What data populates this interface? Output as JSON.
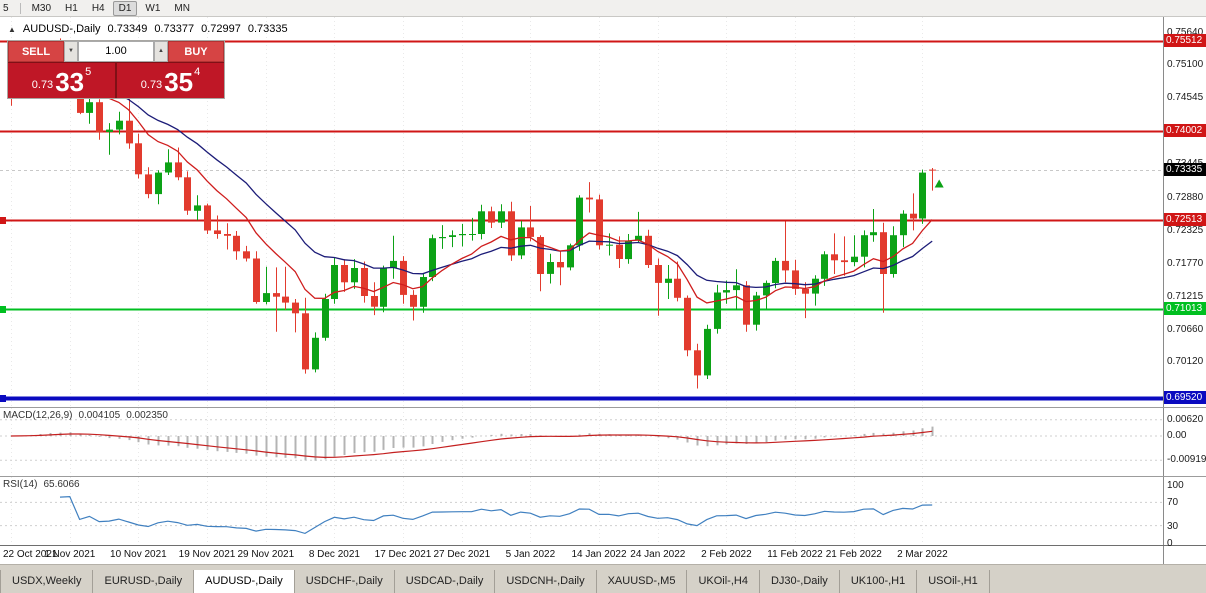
{
  "toolbar": {
    "timeframes": [
      "5",
      "M30",
      "H1",
      "H4",
      "D1",
      "W1",
      "MN"
    ],
    "active": "D1"
  },
  "chart": {
    "collapse_icon": "▲",
    "title": "AUDUSD-,Daily",
    "ohlc": {
      "open": "0.73349",
      "high": "0.73377",
      "low": "0.72997",
      "close": "0.73335"
    },
    "current_price": "0.73335",
    "axis_ticks": [
      "0.75640",
      "0.75100",
      "0.74545",
      "0.73445",
      "0.72880",
      "0.72325",
      "0.71770",
      "0.71215",
      "0.70660",
      "0.70120"
    ],
    "trade_panel": {
      "sell_label": "SELL",
      "buy_label": "BUY",
      "volume": "1.00",
      "spin_down_icon": "▼",
      "spin_up_icon": "▲",
      "sell_price": {
        "prefix": "0.73",
        "big": "33",
        "sup": "5"
      },
      "buy_price": {
        "prefix": "0.73",
        "big": "35",
        "sup": "4"
      }
    }
  },
  "chart_data": {
    "type": "candlestick",
    "title": "AUDUSD-,Daily",
    "symbol": "AUDUSD-",
    "timeframe": "Daily",
    "price_range": {
      "top": 0.75908,
      "bottom": 0.6937
    },
    "candles": [
      [
        0.7468,
        0.7483,
        0.7442,
        0.7465
      ],
      [
        0.7465,
        0.75,
        0.7461,
        0.7488
      ],
      [
        0.7488,
        0.7523,
        0.7481,
        0.75
      ],
      [
        0.75,
        0.7536,
        0.7496,
        0.7518
      ],
      [
        0.7518,
        0.7543,
        0.7499,
        0.7537
      ],
      [
        0.7537,
        0.7555,
        0.7512,
        0.7518
      ],
      [
        0.7518,
        0.7535,
        0.7482,
        0.7522
      ],
      [
        0.7522,
        0.7527,
        0.7428,
        0.743
      ],
      [
        0.743,
        0.7454,
        0.7412,
        0.7448
      ],
      [
        0.7448,
        0.7453,
        0.7385,
        0.7398
      ],
      [
        0.7398,
        0.7413,
        0.736,
        0.7402
      ],
      [
        0.7402,
        0.7432,
        0.7394,
        0.7417
      ],
      [
        0.7417,
        0.7454,
        0.737,
        0.7379
      ],
      [
        0.7379,
        0.7395,
        0.732,
        0.7327
      ],
      [
        0.7327,
        0.7339,
        0.7287,
        0.7294
      ],
      [
        0.7294,
        0.7334,
        0.7277,
        0.733
      ],
      [
        0.733,
        0.7369,
        0.7326,
        0.7347
      ],
      [
        0.7347,
        0.7372,
        0.7317,
        0.7322
      ],
      [
        0.7322,
        0.7332,
        0.7259,
        0.7266
      ],
      [
        0.7266,
        0.7292,
        0.725,
        0.7275
      ],
      [
        0.7275,
        0.7278,
        0.7227,
        0.7233
      ],
      [
        0.7233,
        0.7258,
        0.7219,
        0.7227
      ],
      [
        0.7227,
        0.7245,
        0.7201,
        0.7224
      ],
      [
        0.7224,
        0.7232,
        0.7184,
        0.7198
      ],
      [
        0.7198,
        0.7207,
        0.7181,
        0.7186
      ],
      [
        0.7186,
        0.7198,
        0.711,
        0.7113
      ],
      [
        0.7113,
        0.7172,
        0.7109,
        0.7128
      ],
      [
        0.7128,
        0.7171,
        0.7063,
        0.7122
      ],
      [
        0.7122,
        0.7172,
        0.71,
        0.7112
      ],
      [
        0.7112,
        0.7118,
        0.7062,
        0.7094
      ],
      [
        0.7094,
        0.712,
        0.6993,
        0.7
      ],
      [
        0.7,
        0.7062,
        0.6995,
        0.7053
      ],
      [
        0.7053,
        0.7127,
        0.7048,
        0.7118
      ],
      [
        0.7118,
        0.7187,
        0.711,
        0.7175
      ],
      [
        0.7175,
        0.7185,
        0.713,
        0.7146
      ],
      [
        0.7146,
        0.7185,
        0.7135,
        0.717
      ],
      [
        0.717,
        0.7181,
        0.7112,
        0.7123
      ],
      [
        0.7123,
        0.7146,
        0.7091,
        0.7105
      ],
      [
        0.7105,
        0.7174,
        0.7096,
        0.717
      ],
      [
        0.717,
        0.7224,
        0.7152,
        0.7182
      ],
      [
        0.7182,
        0.719,
        0.711,
        0.7125
      ],
      [
        0.7125,
        0.7133,
        0.7082,
        0.7105
      ],
      [
        0.7105,
        0.716,
        0.7095,
        0.7155
      ],
      [
        0.7155,
        0.7226,
        0.7148,
        0.722
      ],
      [
        0.722,
        0.7242,
        0.7202,
        0.7222
      ],
      [
        0.7222,
        0.7233,
        0.7205,
        0.7225
      ],
      [
        0.7225,
        0.7244,
        0.7206,
        0.7227
      ],
      [
        0.7227,
        0.7254,
        0.7216,
        0.7227
      ],
      [
        0.7227,
        0.7276,
        0.7218,
        0.7265
      ],
      [
        0.7265,
        0.7273,
        0.7237,
        0.7246
      ],
      [
        0.7246,
        0.7277,
        0.7237,
        0.7265
      ],
      [
        0.7265,
        0.7281,
        0.7182,
        0.7191
      ],
      [
        0.7191,
        0.7249,
        0.7185,
        0.7238
      ],
      [
        0.7238,
        0.7274,
        0.7215,
        0.7222
      ],
      [
        0.7222,
        0.7225,
        0.7131,
        0.716
      ],
      [
        0.716,
        0.7194,
        0.7144,
        0.718
      ],
      [
        0.718,
        0.7199,
        0.7141,
        0.7171
      ],
      [
        0.7171,
        0.7211,
        0.7166,
        0.7208
      ],
      [
        0.7208,
        0.7292,
        0.7199,
        0.7288
      ],
      [
        0.7288,
        0.7314,
        0.7263,
        0.7285
      ],
      [
        0.7285,
        0.7293,
        0.7201,
        0.7208
      ],
      [
        0.7208,
        0.7228,
        0.7191,
        0.7209
      ],
      [
        0.7209,
        0.7223,
        0.717,
        0.7185
      ],
      [
        0.7185,
        0.7227,
        0.7177,
        0.7216
      ],
      [
        0.7216,
        0.7264,
        0.7212,
        0.7224
      ],
      [
        0.7224,
        0.7234,
        0.717,
        0.7175
      ],
      [
        0.7175,
        0.7186,
        0.709,
        0.7145
      ],
      [
        0.7145,
        0.7175,
        0.7118,
        0.7152
      ],
      [
        0.7152,
        0.7181,
        0.7114,
        0.712
      ],
      [
        0.712,
        0.7124,
        0.7022,
        0.7032
      ],
      [
        0.7032,
        0.7043,
        0.6968,
        0.699
      ],
      [
        0.699,
        0.7075,
        0.6984,
        0.7068
      ],
      [
        0.7068,
        0.7142,
        0.706,
        0.7129
      ],
      [
        0.7129,
        0.7149,
        0.711,
        0.7133
      ],
      [
        0.7133,
        0.7168,
        0.71,
        0.7141
      ],
      [
        0.7141,
        0.7148,
        0.7063,
        0.7075
      ],
      [
        0.7075,
        0.713,
        0.7065,
        0.7124
      ],
      [
        0.7124,
        0.7149,
        0.7102,
        0.7145
      ],
      [
        0.7145,
        0.7187,
        0.7136,
        0.7182
      ],
      [
        0.7182,
        0.7248,
        0.7146,
        0.7166
      ],
      [
        0.7166,
        0.7184,
        0.7125,
        0.7135
      ],
      [
        0.7135,
        0.7146,
        0.7086,
        0.7127
      ],
      [
        0.7127,
        0.7158,
        0.7107,
        0.7152
      ],
      [
        0.7152,
        0.7198,
        0.714,
        0.7193
      ],
      [
        0.7193,
        0.7228,
        0.716,
        0.7183
      ],
      [
        0.7183,
        0.7223,
        0.7157,
        0.718
      ],
      [
        0.718,
        0.7225,
        0.7173,
        0.7189
      ],
      [
        0.7189,
        0.7233,
        0.7171,
        0.7225
      ],
      [
        0.7225,
        0.7269,
        0.7214,
        0.723
      ],
      [
        0.723,
        0.7246,
        0.7095,
        0.716
      ],
      [
        0.716,
        0.724,
        0.7154,
        0.7225
      ],
      [
        0.7225,
        0.7267,
        0.7205,
        0.7261
      ],
      [
        0.7261,
        0.7295,
        0.7233,
        0.7253
      ],
      [
        0.7253,
        0.7335,
        0.7244,
        0.733
      ],
      [
        0.73349,
        0.73377,
        0.72997,
        0.73335
      ]
    ],
    "date_ticks": [
      {
        "label": "22 Oct 2021",
        "index": 0
      },
      {
        "label": "1 Nov 2021",
        "index": 6
      },
      {
        "label": "10 Nov 2021",
        "index": 13
      },
      {
        "label": "19 Nov 2021",
        "index": 20
      },
      {
        "label": "29 Nov 2021",
        "index": 26
      },
      {
        "label": "8 Dec 2021",
        "index": 33
      },
      {
        "label": "17 Dec 2021",
        "index": 40
      },
      {
        "label": "27 Dec 2021",
        "index": 46
      },
      {
        "label": "5 Jan 2022",
        "index": 53
      },
      {
        "label": "14 Jan 2022",
        "index": 60
      },
      {
        "label": "24 Jan 2022",
        "index": 66
      },
      {
        "label": "2 Feb 2022",
        "index": 73
      },
      {
        "label": "11 Feb 2022",
        "index": 80
      },
      {
        "label": "21 Feb 2022",
        "index": 86
      },
      {
        "label": "2 Mar 2022",
        "index": 93
      }
    ],
    "levels": [
      {
        "price": 0.75512,
        "label": "0.75512",
        "color": "#d01616",
        "width": 2,
        "left_tag": false
      },
      {
        "price": 0.74002,
        "label": "0.74002",
        "color": "#d01616",
        "width": 2,
        "left_tag": false
      },
      {
        "price": 0.72513,
        "label": "0.72513",
        "color": "#d01616",
        "width": 2,
        "left_tag": true
      },
      {
        "price": 0.71013,
        "label": "0.71013",
        "color": "#00bf20",
        "width": 2,
        "left_tag": true
      },
      {
        "price": 0.6952,
        "label": "0.69520",
        "color": "#0a0ac0",
        "width": 4,
        "left_tag": true
      }
    ],
    "overlays": {
      "fast_period": 10,
      "slow_period": 20
    },
    "marker": {
      "type": "up-arrow",
      "price": 0.731,
      "color": "#0ca216"
    },
    "indicators": {
      "macd": {
        "label": "MACD(12,26,9)",
        "value_main": "0.004105",
        "value_signal": "0.002350",
        "axis": [
          "0.00620",
          "0.00",
          "-0.00919"
        ]
      },
      "rsi": {
        "label": "RSI(14)",
        "value": "65.6066",
        "axis": [
          "100",
          "70",
          "30",
          "0"
        ],
        "levels": [
          70,
          30
        ]
      }
    }
  },
  "tabs": {
    "items": [
      "USDX,Weekly",
      "EURUSD-,Daily",
      "AUDUSD-,Daily",
      "USDCHF-,Daily",
      "USDCAD-,Daily",
      "USDCNH-,Daily",
      "XAUUSD-,M5",
      "UKOil-,H4",
      "DJ30-,Daily",
      "UK100-,H1",
      "USOil-,H1"
    ],
    "active_index": 2
  },
  "colors": {
    "candle_up": "#0ca216",
    "candle_down": "#e23b2e",
    "ma_fast": "#cf1d1d",
    "ma_slow": "#1c1c78",
    "macd_hist": "#b4b4b4",
    "macd_signal": "#c42020",
    "rsi_line": "#4080c0",
    "grid": "#e9e9e9",
    "current_tag_bg": "#000000"
  }
}
